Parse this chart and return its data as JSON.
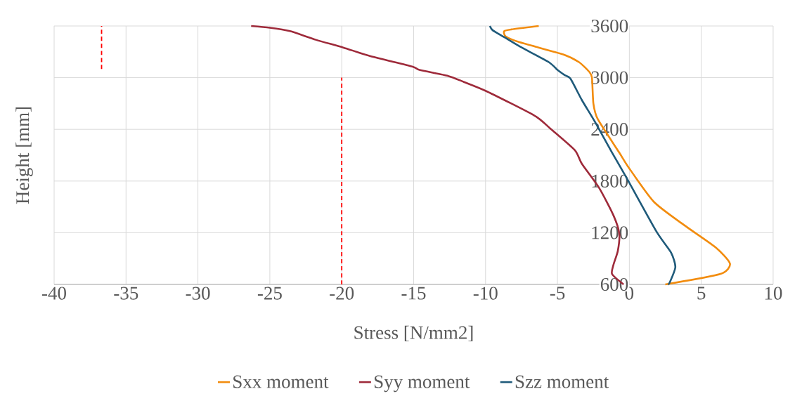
{
  "chart_data": {
    "type": "line",
    "xlabel": "Stress [N/mm2]",
    "ylabel": "Height [mm]",
    "xlim": [
      -40,
      10
    ],
    "ylim": [
      600,
      3600
    ],
    "xticks": [
      -40,
      -35,
      -30,
      -25,
      -20,
      -15,
      -10,
      -5,
      0,
      5,
      10
    ],
    "yticks": [
      600,
      1200,
      1800,
      2400,
      3000,
      3600
    ],
    "grid": true,
    "legend": "bottom",
    "marker": "none",
    "series": [
      {
        "name": "Sxx moment",
        "color": "#f28c0e",
        "line_style": "solid",
        "x": [
          2.5,
          6.3,
          7.0,
          6.0,
          3.8,
          1.7,
          -0.1,
          -0.7,
          -2.2,
          -2.5,
          -2.6,
          -2.8,
          -3.5,
          -4.6,
          -7.6,
          -8.6,
          -8.7,
          -8.2,
          -6.3
        ],
        "values": [
          600,
          720,
          840,
          1030,
          1290,
          1560,
          1970,
          2130,
          2520,
          2700,
          3000,
          3070,
          3180,
          3270,
          3410,
          3480,
          3540,
          3560,
          3600
        ]
      },
      {
        "name": "Syy moment",
        "color": "#9e2a3a",
        "line_style": "solid",
        "x": [
          -0.4,
          -1.2,
          -1.1,
          -0.8,
          -0.7,
          -1.1,
          -2.1,
          -3.3,
          -3.8,
          -5.5,
          -6.6,
          -9.9,
          -11.5,
          -12.6,
          -14.6,
          -15.1,
          -18.0,
          -19.9,
          -21.8,
          -23.6,
          -25.0,
          -26.3
        ],
        "values": [
          600,
          720,
          830,
          990,
          1190,
          1400,
          1720,
          2000,
          2160,
          2410,
          2560,
          2840,
          2950,
          3020,
          3090,
          3130,
          3250,
          3350,
          3440,
          3540,
          3580,
          3600
        ]
      },
      {
        "name": "Szz moment",
        "color": "#1f5a7a",
        "line_style": "solid",
        "x": [
          2.7,
          2.8,
          3.2,
          2.9,
          1.9,
          -0.1,
          -1.2,
          -2.4,
          -3.3,
          -4.1,
          -4.5,
          -5.0,
          -5.6,
          -7.6,
          -8.7,
          -9.5,
          -9.7
        ],
        "values": [
          600,
          620,
          800,
          970,
          1210,
          1810,
          2130,
          2490,
          2740,
          2990,
          3030,
          3090,
          3180,
          3360,
          3470,
          3550,
          3600
        ]
      },
      {
        "color": "#ff0000",
        "line_style": "dashed",
        "x": [
          -36.7,
          -36.7
        ],
        "values": [
          3100,
          3600
        ]
      },
      {
        "color": "#ff0000",
        "line_style": "dashed",
        "x": [
          -20,
          -20
        ],
        "values": [
          600,
          3000
        ]
      }
    ]
  }
}
